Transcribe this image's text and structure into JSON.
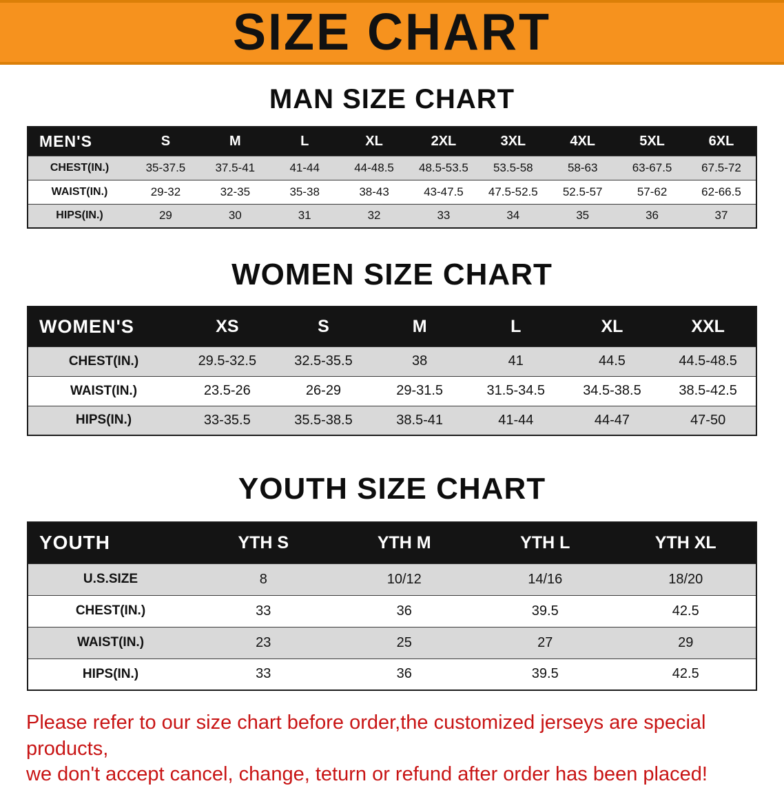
{
  "banner": {
    "title": "SIZE CHART"
  },
  "colors": {
    "banner_bg": "#F6921E",
    "banner_text": "#111111",
    "table_header_bg": "#141414",
    "table_header_text": "#FFFFFF",
    "row_alt_bg": "#D9D9D9",
    "disclaimer_text": "#C81414"
  },
  "sections": [
    {
      "id": "men",
      "heading": "MAN SIZE CHART",
      "table": {
        "header": [
          "MEN'S",
          "S",
          "M",
          "L",
          "XL",
          "2XL",
          "3XL",
          "4XL",
          "5XL",
          "6XL"
        ],
        "rows": [
          [
            "CHEST(IN.)",
            "35-37.5",
            "37.5-41",
            "41-44",
            "44-48.5",
            "48.5-53.5",
            "53.5-58",
            "58-63",
            "63-67.5",
            "67.5-72"
          ],
          [
            "WAIST(IN.)",
            "29-32",
            "32-35",
            "35-38",
            "38-43",
            "43-47.5",
            "47.5-52.5",
            "52.5-57",
            "57-62",
            "62-66.5"
          ],
          [
            "HIPS(IN.)",
            "29",
            "30",
            "31",
            "32",
            "33",
            "34",
            "35",
            "36",
            "37"
          ]
        ]
      }
    },
    {
      "id": "women",
      "heading": "WOMEN SIZE CHART",
      "table": {
        "header": [
          "WOMEN'S",
          "XS",
          "S",
          "M",
          "L",
          "XL",
          "XXL"
        ],
        "rows": [
          [
            "CHEST(IN.)",
            "29.5-32.5",
            "32.5-35.5",
            "38",
            "41",
            "44.5",
            "44.5-48.5"
          ],
          [
            "WAIST(IN.)",
            "23.5-26",
            "26-29",
            "29-31.5",
            "31.5-34.5",
            "34.5-38.5",
            "38.5-42.5"
          ],
          [
            "HIPS(IN.)",
            "33-35.5",
            "35.5-38.5",
            "38.5-41",
            "41-44",
            "44-47",
            "47-50"
          ]
        ]
      }
    },
    {
      "id": "youth",
      "heading": "YOUTH SIZE CHART",
      "table": {
        "header": [
          "YOUTH",
          "YTH S",
          "YTH M",
          "YTH L",
          "YTH XL"
        ],
        "rows": [
          [
            "U.S.SIZE",
            "8",
            "10/12",
            "14/16",
            "18/20"
          ],
          [
            "CHEST(IN.)",
            "33",
            "36",
            "39.5",
            "42.5"
          ],
          [
            "WAIST(IN.)",
            "23",
            "25",
            "27",
            "29"
          ],
          [
            "HIPS(IN.)",
            "33",
            "36",
            "39.5",
            "42.5"
          ]
        ]
      }
    }
  ],
  "disclaimer": {
    "line1": "Please refer to our size chart before order,the customized jerseys are special products,",
    "line2": "we don't accept cancel, change, teturn or refund after order has been placed!"
  }
}
